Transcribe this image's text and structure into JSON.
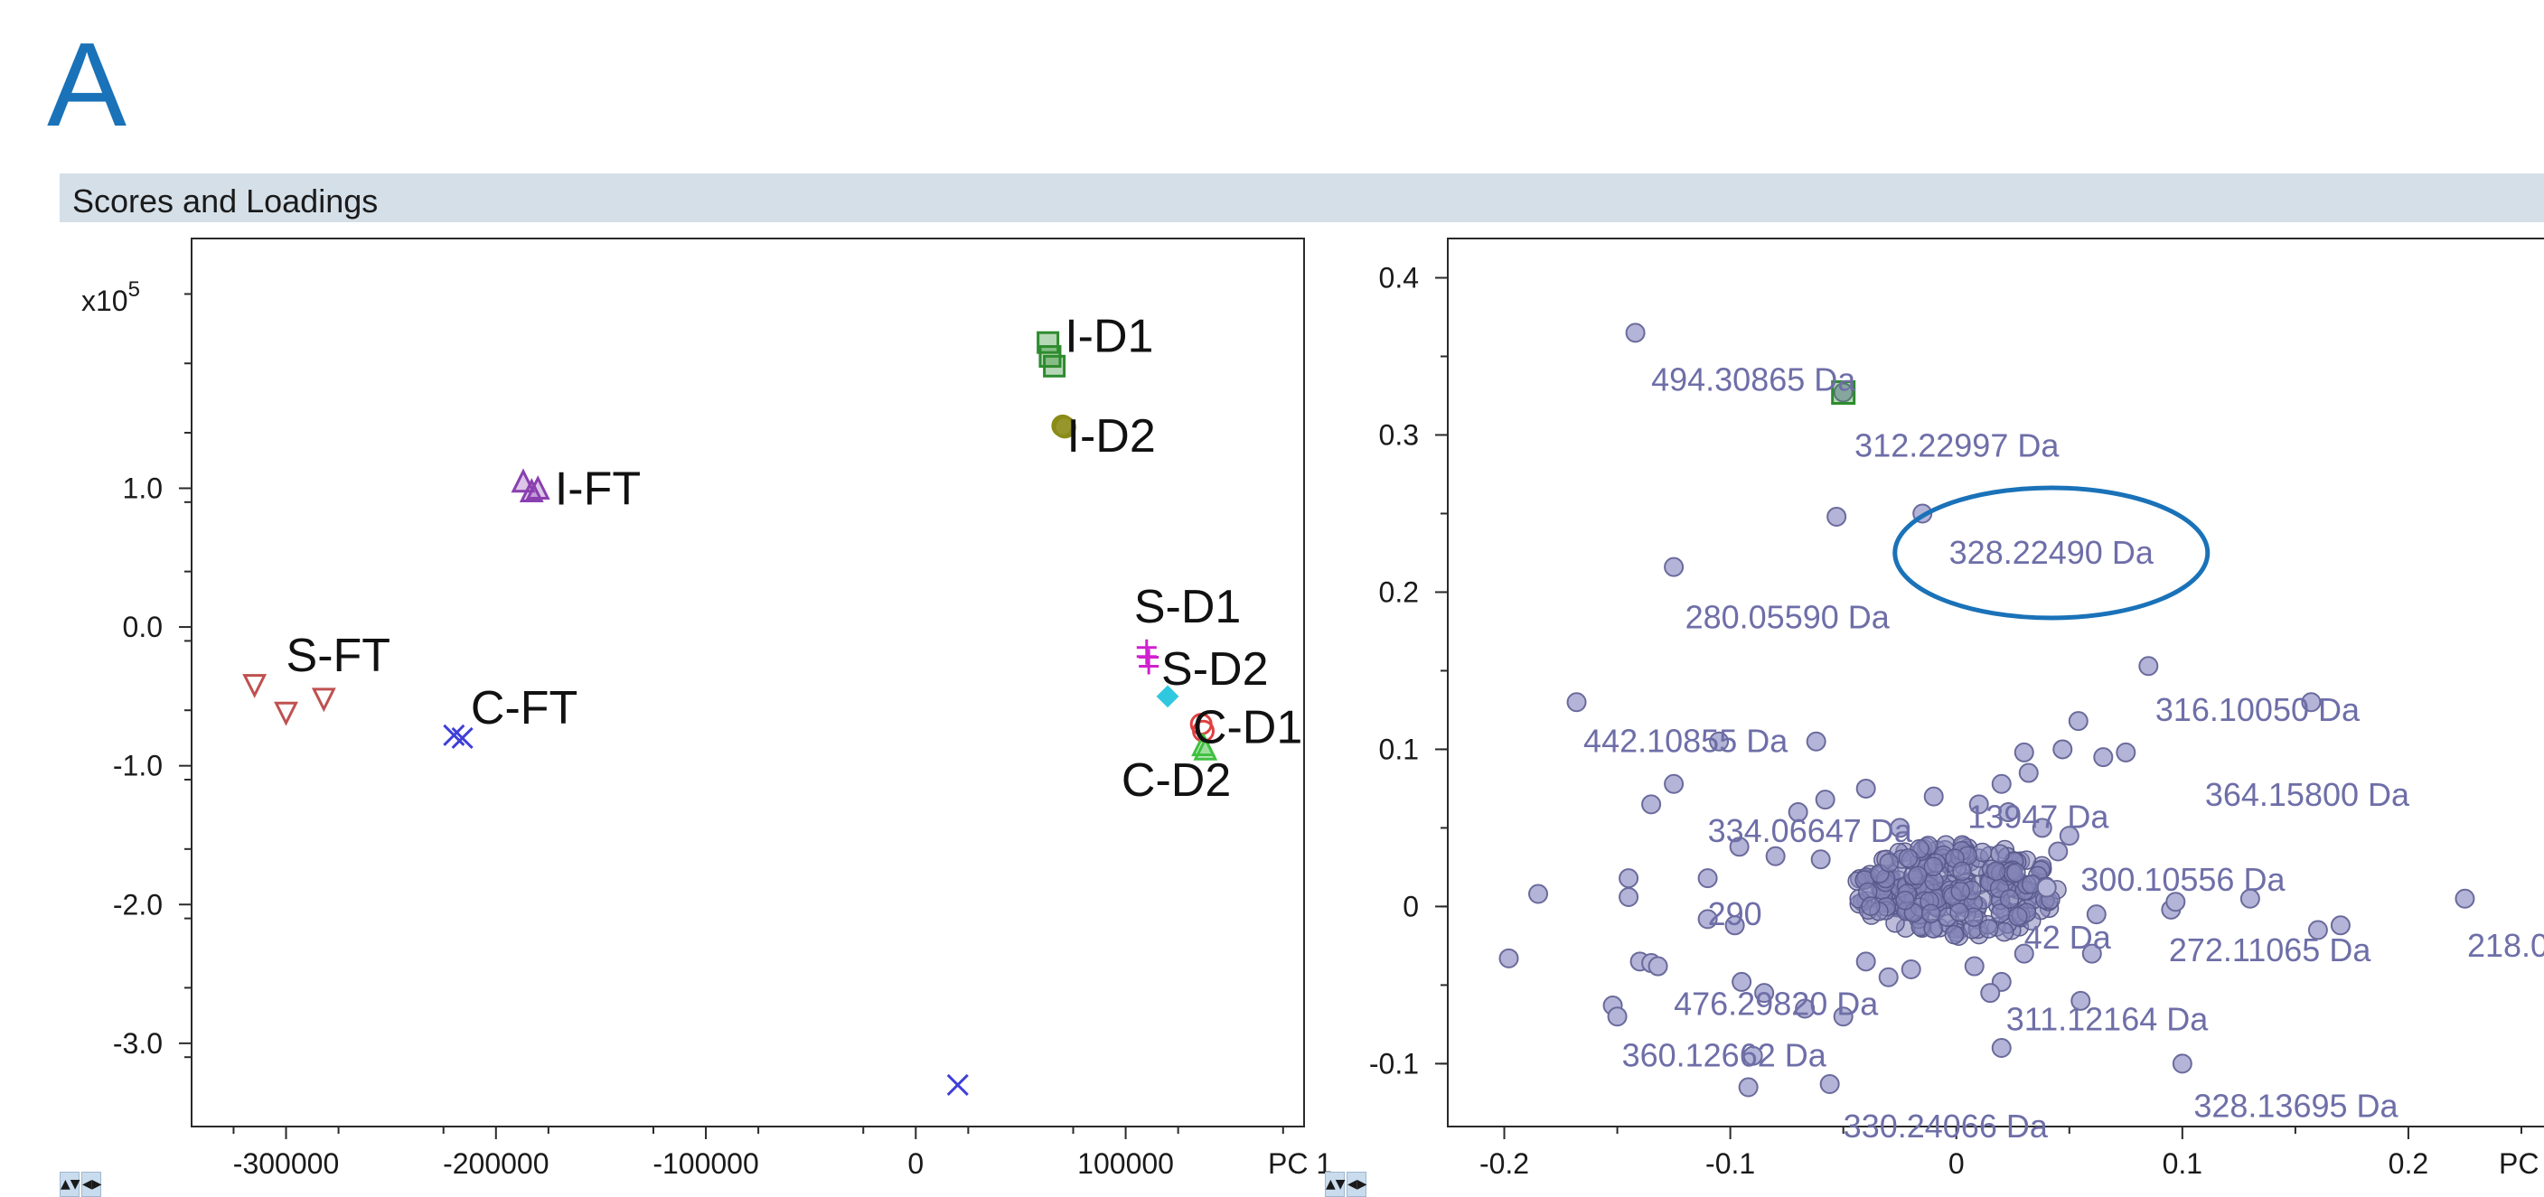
{
  "panel_label": "A",
  "section_title": "Scores and Loadings",
  "controls": {
    "up_down": "▲▼",
    "left_right": "◀▶"
  },
  "chart_data": [
    {
      "type": "scatter",
      "name": "scores",
      "x_multiplier_label": "x10",
      "x_multiplier_exponent": "5",
      "xlabel": "PC 1",
      "xlim": [
        -345000,
        185000
      ],
      "ylim": [
        -3.6,
        2.8
      ],
      "x_ticks": [
        -300000,
        -200000,
        -100000,
        0,
        100000
      ],
      "x_tick_labels": [
        "-300000",
        "-200000",
        "-100000",
        "0",
        "100000"
      ],
      "y_ticks": [
        1.0,
        0.0,
        -1.0,
        -2.0,
        -3.0
      ],
      "y_tick_labels": [
        "1.0",
        "0.0",
        "-1.0",
        "-2.0",
        "-3.0"
      ],
      "groups": [
        {
          "label": "I-D1",
          "marker": "square",
          "color": "#2e8b2e",
          "points": [
            [
              63000,
              2.05
            ],
            [
              64000,
              1.95
            ],
            [
              66000,
              1.88
            ]
          ]
        },
        {
          "label": "I-D2",
          "marker": "circle",
          "color": "#8b8b18",
          "points": [
            [
              70000,
              1.45
            ],
            [
              71000,
              1.44
            ]
          ]
        },
        {
          "label": "I-FT",
          "marker": "triangle-up",
          "color": "#8a3fb0",
          "points": [
            [
              -187000,
              1.05
            ],
            [
              -183000,
              0.98
            ],
            [
              -180000,
              1.0
            ]
          ]
        },
        {
          "label": "S-FT",
          "marker": "triangle-down",
          "color": "#c05050",
          "points": [
            [
              -315000,
              -0.42
            ],
            [
              -300000,
              -0.62
            ],
            [
              -282000,
              -0.52
            ]
          ]
        },
        {
          "label": "C-FT",
          "marker": "x",
          "color": "#3f3fd8",
          "points": [
            [
              -220000,
              -0.78
            ],
            [
              -216000,
              -0.8
            ],
            [
              20000,
              -3.3
            ]
          ]
        },
        {
          "label": "S-D1",
          "marker": "plus",
          "color": "#d020d0",
          "points": [
            [
              110000,
              -0.18
            ],
            [
              111000,
              -0.25
            ]
          ]
        },
        {
          "label": "S-D2",
          "marker": "diamond",
          "color": "#30c8e0",
          "points": [
            [
              120000,
              -0.5
            ]
          ]
        },
        {
          "label": "C-D1",
          "marker": "circle-open",
          "color": "#e04040",
          "points": [
            [
              136000,
              -0.7
            ],
            [
              137000,
              -0.75
            ]
          ]
        },
        {
          "label": "C-D2",
          "marker": "triangle-up",
          "color": "#40c040",
          "points": [
            [
              137000,
              -0.85
            ],
            [
              138000,
              -0.88
            ]
          ]
        }
      ],
      "annotations": [
        {
          "text": "I-D1",
          "x": 71000,
          "y": 2.1
        },
        {
          "text": "I-D2",
          "x": 72000,
          "y": 1.38
        },
        {
          "text": "I-FT",
          "x": -172000,
          "y": 1.0
        },
        {
          "text": "S-FT",
          "x": -300000,
          "y": -0.2
        },
        {
          "text": "C-FT",
          "x": -212000,
          "y": -0.58
        },
        {
          "text": "S-D1",
          "x": 104000,
          "y": 0.15
        },
        {
          "text": "S-D2",
          "x": 117000,
          "y": -0.3
        },
        {
          "text": "C-D1",
          "x": 132000,
          "y": -0.72
        },
        {
          "text": "C-D2",
          "x": 98000,
          "y": -1.1
        }
      ]
    },
    {
      "type": "scatter",
      "name": "loadings",
      "xlabel": "PC 1",
      "xlim": [
        -0.225,
        0.27
      ],
      "ylim": [
        -0.14,
        0.425
      ],
      "x_ticks": [
        -0.2,
        -0.1,
        0,
        0.1,
        0.2
      ],
      "x_tick_labels": [
        "-0.2",
        "-0.1",
        "0",
        "0.1",
        "0.2"
      ],
      "y_ticks": [
        0.4,
        0.3,
        0.2,
        0.1,
        0,
        -0.1
      ],
      "y_tick_labels": [
        "0.4",
        "0.3",
        "0.2",
        "0.1",
        "0",
        "-0.1"
      ],
      "color": "#8585b8",
      "highlight": {
        "x": -0.05,
        "y": 0.327,
        "color": "#2e8b2e"
      },
      "callout": {
        "text": "328.22490 Da",
        "x": 0.042,
        "y": 0.225,
        "color": "#1a72b8"
      },
      "points": [
        [
          -0.142,
          0.365
        ],
        [
          -0.05,
          0.327
        ],
        [
          -0.053,
          0.248
        ],
        [
          -0.015,
          0.25
        ],
        [
          -0.125,
          0.216
        ],
        [
          -0.168,
          0.13
        ],
        [
          -0.062,
          0.105
        ],
        [
          -0.105,
          0.105
        ],
        [
          0.085,
          0.153
        ],
        [
          0.157,
          0.13
        ],
        [
          0.054,
          0.118
        ],
        [
          0.047,
          0.1
        ],
        [
          0.065,
          0.095
        ],
        [
          0.075,
          0.098
        ],
        [
          0.03,
          0.098
        ],
        [
          -0.125,
          0.078
        ],
        [
          -0.135,
          0.065
        ],
        [
          -0.07,
          0.06
        ],
        [
          -0.058,
          0.068
        ],
        [
          -0.08,
          0.032
        ],
        [
          -0.096,
          0.038
        ],
        [
          -0.11,
          0.018
        ],
        [
          -0.145,
          0.018
        ],
        [
          -0.145,
          0.006
        ],
        [
          -0.185,
          0.008
        ],
        [
          -0.11,
          -0.008
        ],
        [
          -0.098,
          -0.012
        ],
        [
          -0.198,
          -0.033
        ],
        [
          -0.14,
          -0.035
        ],
        [
          -0.135,
          -0.036
        ],
        [
          -0.132,
          -0.038
        ],
        [
          -0.095,
          -0.048
        ],
        [
          -0.085,
          -0.055
        ],
        [
          -0.067,
          -0.065
        ],
        [
          -0.05,
          -0.07
        ],
        [
          -0.152,
          -0.063
        ],
        [
          -0.15,
          -0.07
        ],
        [
          -0.09,
          -0.095
        ],
        [
          -0.092,
          -0.115
        ],
        [
          -0.056,
          -0.113
        ],
        [
          0.02,
          -0.09
        ],
        [
          0.1,
          -0.1
        ],
        [
          0.13,
          0.005
        ],
        [
          0.095,
          -0.002
        ],
        [
          0.097,
          0.003
        ],
        [
          0.17,
          -0.012
        ],
        [
          0.16,
          -0.015
        ],
        [
          0.225,
          0.005
        ],
        [
          0.02,
          -0.048
        ],
        [
          0.008,
          -0.038
        ],
        [
          0.055,
          -0.06
        ],
        [
          0.03,
          -0.03
        ],
        [
          0.062,
          -0.005
        ],
        [
          -0.03,
          -0.045
        ],
        [
          -0.02,
          -0.04
        ],
        [
          -0.04,
          -0.035
        ],
        [
          0.04,
          0.012
        ],
        [
          -0.06,
          0.03
        ],
        [
          0.045,
          0.035
        ],
        [
          0.05,
          0.045
        ],
        [
          0.038,
          0.05
        ],
        [
          0.023,
          0.06
        ],
        [
          -0.04,
          0.075
        ],
        [
          -0.01,
          0.07
        ],
        [
          0.01,
          0.065
        ],
        [
          0.02,
          0.078
        ],
        [
          0.032,
          0.085
        ],
        [
          -0.025,
          0.05
        ],
        [
          0.015,
          -0.055
        ],
        [
          0.06,
          -0.03
        ]
      ],
      "cluster": {
        "x": 0,
        "y": 0.01,
        "rx": 0.045,
        "ry": 0.03,
        "count": 260
      },
      "labels": [
        {
          "text": "494.30865 Da",
          "x": -0.135,
          "y": 0.335
        },
        {
          "text": "312.22997 Da",
          "x": -0.045,
          "y": 0.293
        },
        {
          "text": "280.05590 Da",
          "x": -0.12,
          "y": 0.184
        },
        {
          "text": "316.10050 Da",
          "x": 0.088,
          "y": 0.125
        },
        {
          "text": "442.10855 Da",
          "x": -0.165,
          "y": 0.105
        },
        {
          "text": "364.15800 Da",
          "x": 0.11,
          "y": 0.071
        },
        {
          "text": "334.06647 Da",
          "x": -0.11,
          "y": 0.048
        },
        {
          "text": "13947 Da",
          "x": 0.005,
          "y": 0.057
        },
        {
          "text": "300.10556 Da",
          "x": 0.055,
          "y": 0.017
        },
        {
          "text": "290",
          "x": -0.11,
          "y": -0.005
        },
        {
          "text": "42 Da",
          "x": 0.03,
          "y": -0.02
        },
        {
          "text": "272.11065 Da",
          "x": 0.094,
          "y": -0.028
        },
        {
          "text": "218.0",
          "x": 0.226,
          "y": -0.025
        },
        {
          "text": "476.29820 Da",
          "x": -0.125,
          "y": -0.062
        },
        {
          "text": "311.12164 Da",
          "x": 0.022,
          "y": -0.072
        },
        {
          "text": "360.12662 Da",
          "x": -0.148,
          "y": -0.095
        },
        {
          "text": "328.13695 Da",
          "x": 0.105,
          "y": -0.127
        },
        {
          "text": "330.24066 Da",
          "x": -0.05,
          "y": -0.14
        }
      ]
    }
  ]
}
